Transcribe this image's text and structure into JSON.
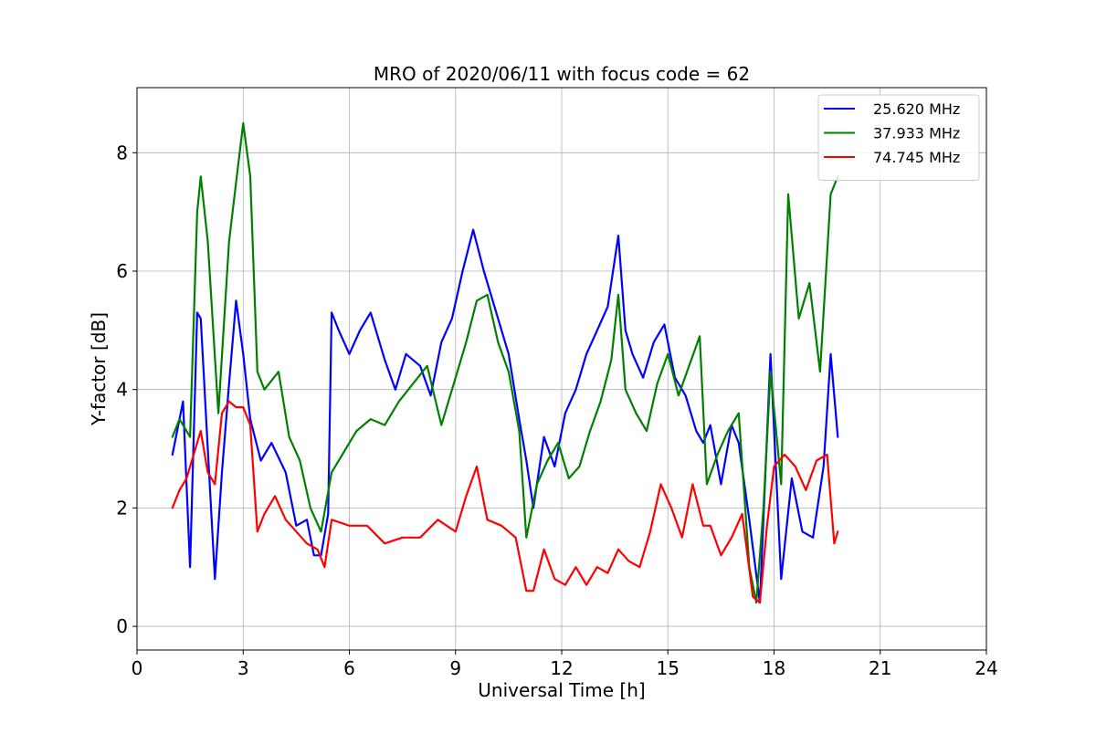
{
  "chart_data": {
    "type": "line",
    "title": "MRO of 2020/06/11 with focus code = 62",
    "xlabel": "Universal Time [h]",
    "ylabel": "Y-factor [dB]",
    "xlim": [
      0,
      24
    ],
    "ylim": [
      -0.4,
      9.1
    ],
    "xticks": [
      0,
      3,
      6,
      9,
      12,
      15,
      18,
      21,
      24
    ],
    "yticks": [
      0,
      2,
      4,
      6,
      8
    ],
    "grid": true,
    "legend_position": "top-right",
    "series": [
      {
        "name": "25.620 MHz",
        "color": "#0000ff",
        "x": [
          1.0,
          1.3,
          1.5,
          1.7,
          1.8,
          2.0,
          2.2,
          2.4,
          2.6,
          2.8,
          3.0,
          3.2,
          3.5,
          3.8,
          4.2,
          4.5,
          4.8,
          5.0,
          5.2,
          5.4,
          5.5,
          5.7,
          6.0,
          6.3,
          6.6,
          7.0,
          7.3,
          7.6,
          8.0,
          8.3,
          8.6,
          8.9,
          9.2,
          9.5,
          9.8,
          10.2,
          10.5,
          10.8,
          11.0,
          11.2,
          11.5,
          11.8,
          12.1,
          12.4,
          12.7,
          13.0,
          13.3,
          13.6,
          13.8,
          14.0,
          14.3,
          14.6,
          14.9,
          15.2,
          15.5,
          15.8,
          16.0,
          16.2,
          16.5,
          16.8,
          17.0,
          17.3,
          17.6,
          17.9,
          18.2,
          18.5,
          18.8,
          19.1,
          19.4,
          19.6,
          19.8
        ],
        "values": [
          2.9,
          3.8,
          1.0,
          5.3,
          5.2,
          3.0,
          0.8,
          2.6,
          4.1,
          5.5,
          4.6,
          3.5,
          2.8,
          3.1,
          2.6,
          1.7,
          1.8,
          1.2,
          1.2,
          1.9,
          5.3,
          5.0,
          4.6,
          5.0,
          5.3,
          4.5,
          4.0,
          4.6,
          4.4,
          3.9,
          4.8,
          5.2,
          6.0,
          6.7,
          6.0,
          5.2,
          4.6,
          3.5,
          2.8,
          2.0,
          3.2,
          2.7,
          3.6,
          4.0,
          4.6,
          5.0,
          5.4,
          6.6,
          5.0,
          4.6,
          4.2,
          4.8,
          5.1,
          4.2,
          3.9,
          3.3,
          3.1,
          3.4,
          2.4,
          3.4,
          3.1,
          1.8,
          0.4,
          4.6,
          0.8,
          2.5,
          1.6,
          1.5,
          2.7,
          4.6,
          3.2
        ]
      },
      {
        "name": "37.933 MHz",
        "color": "#008000",
        "x": [
          1.0,
          1.2,
          1.5,
          1.7,
          1.8,
          2.0,
          2.3,
          2.6,
          2.8,
          3.0,
          3.2,
          3.4,
          3.6,
          4.0,
          4.3,
          4.6,
          4.9,
          5.2,
          5.5,
          5.8,
          6.2,
          6.6,
          7.0,
          7.4,
          7.8,
          8.2,
          8.6,
          9.0,
          9.3,
          9.6,
          9.9,
          10.2,
          10.5,
          10.8,
          11.0,
          11.3,
          11.6,
          11.9,
          12.2,
          12.5,
          12.8,
          13.1,
          13.4,
          13.6,
          13.8,
          14.1,
          14.4,
          14.7,
          15.0,
          15.3,
          15.6,
          15.9,
          16.1,
          16.4,
          16.7,
          17.0,
          17.3,
          17.5,
          17.7,
          17.9,
          18.2,
          18.4,
          18.7,
          19.0,
          19.3,
          19.6,
          19.8
        ],
        "values": [
          3.2,
          3.5,
          3.2,
          7.0,
          7.6,
          6.5,
          3.6,
          6.5,
          7.5,
          8.5,
          7.6,
          4.3,
          4.0,
          4.3,
          3.2,
          2.8,
          2.0,
          1.6,
          2.6,
          2.9,
          3.3,
          3.5,
          3.4,
          3.8,
          4.1,
          4.4,
          3.4,
          4.2,
          4.8,
          5.5,
          5.6,
          4.8,
          4.3,
          3.3,
          1.5,
          2.4,
          2.8,
          3.1,
          2.5,
          2.7,
          3.3,
          3.8,
          4.5,
          5.6,
          4.0,
          3.6,
          3.3,
          4.1,
          4.6,
          3.9,
          4.4,
          4.9,
          2.4,
          2.9,
          3.3,
          3.6,
          1.0,
          0.4,
          2.0,
          4.3,
          2.4,
          7.3,
          5.2,
          5.8,
          4.3,
          7.3,
          7.6
        ]
      },
      {
        "name": "74.745 MHz",
        "color": "#ff0000",
        "x": [
          1.0,
          1.2,
          1.4,
          1.6,
          1.8,
          2.0,
          2.2,
          2.4,
          2.6,
          2.8,
          3.0,
          3.2,
          3.4,
          3.6,
          3.9,
          4.2,
          4.5,
          4.8,
          5.1,
          5.3,
          5.5,
          6.0,
          6.5,
          7.0,
          7.5,
          8.0,
          8.5,
          9.0,
          9.3,
          9.6,
          9.9,
          10.3,
          10.7,
          11.0,
          11.2,
          11.5,
          11.8,
          12.1,
          12.4,
          12.7,
          13.0,
          13.3,
          13.6,
          13.9,
          14.2,
          14.5,
          14.8,
          15.1,
          15.4,
          15.7,
          16.0,
          16.2,
          16.5,
          16.8,
          17.1,
          17.4,
          17.6,
          17.8,
          18.0,
          18.3,
          18.6,
          18.9,
          19.2,
          19.5,
          19.7,
          19.8
        ],
        "values": [
          2.0,
          2.3,
          2.5,
          2.9,
          3.3,
          2.6,
          2.4,
          3.6,
          3.8,
          3.7,
          3.7,
          3.4,
          1.6,
          1.9,
          2.2,
          1.8,
          1.6,
          1.4,
          1.3,
          1.0,
          1.8,
          1.7,
          1.7,
          1.4,
          1.5,
          1.5,
          1.8,
          1.6,
          2.2,
          2.7,
          1.8,
          1.7,
          1.5,
          0.6,
          0.6,
          1.3,
          0.8,
          0.7,
          1.0,
          0.7,
          1.0,
          0.9,
          1.3,
          1.1,
          1.0,
          1.6,
          2.4,
          2.0,
          1.5,
          2.4,
          1.7,
          1.7,
          1.2,
          1.5,
          1.9,
          0.5,
          0.4,
          1.7,
          2.7,
          2.9,
          2.7,
          2.3,
          2.8,
          2.9,
          1.4,
          1.6
        ]
      }
    ]
  }
}
